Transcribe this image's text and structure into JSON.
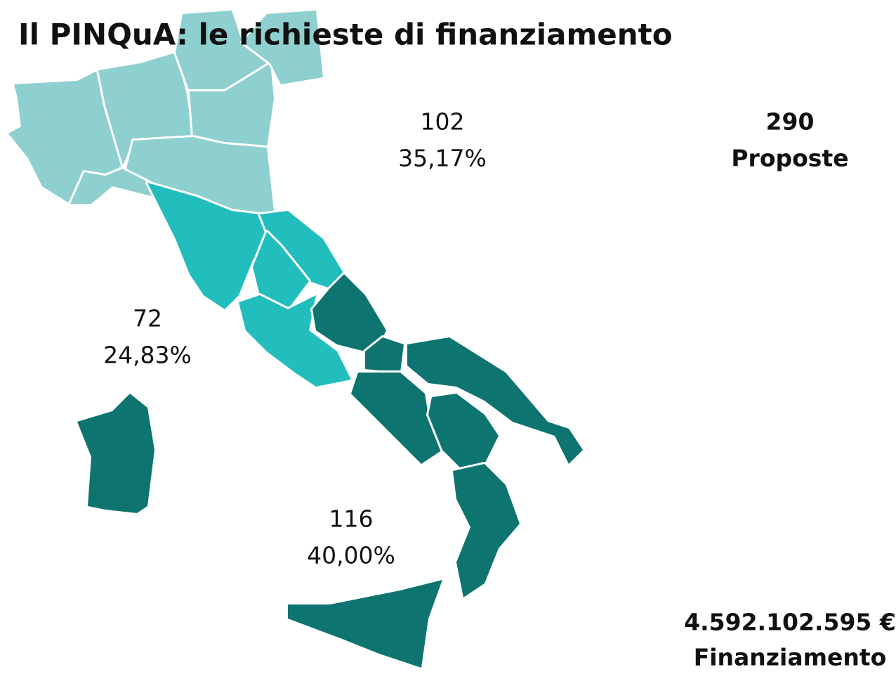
{
  "title": "Il PINQuA: le richieste di finanziamento",
  "areas": [
    {
      "name": "north",
      "count": "102",
      "percent": "35,17%"
    },
    {
      "name": "center",
      "count": "72",
      "percent": "24,83%"
    },
    {
      "name": "south",
      "count": "116",
      "percent": "40,00%"
    }
  ],
  "totals": {
    "proposals": "290",
    "proposals_label": "Proposte",
    "funding": "4.592.102.595 €",
    "funding_label": "Finanziamento"
  }
}
